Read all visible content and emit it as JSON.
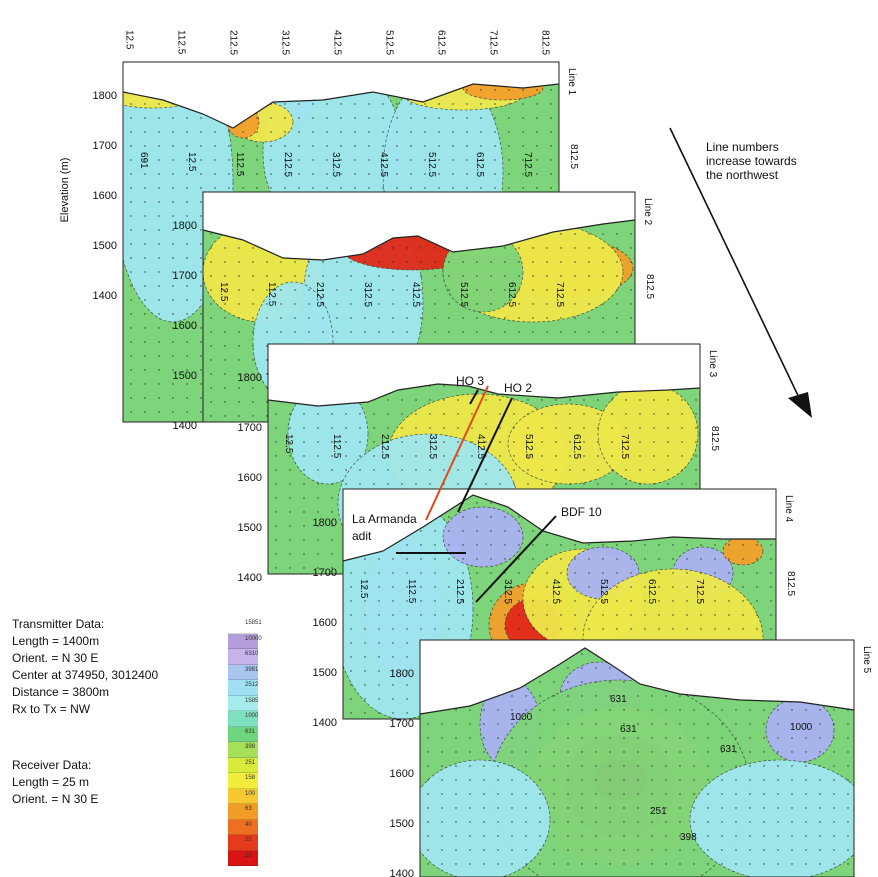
{
  "top_axis_ticks": [
    "12.5",
    "112.5",
    "212.5",
    "312.5",
    "412.5",
    "512.5",
    "612.5",
    "712.5",
    "812.5"
  ],
  "y_axis_label": "Elevation (m)",
  "sections": [
    {
      "name": "Line 1",
      "elev_ticks": [
        "1800",
        "1700",
        "1600",
        "1500",
        "1400"
      ],
      "station_labels": [
        "691",
        "12.5",
        "112.5",
        "212.5",
        "312.5",
        "412.5",
        "512.5",
        "612.5",
        "712.5"
      ],
      "side_label": "812.5"
    },
    {
      "name": "Line 2",
      "elev_ticks": [
        "1800",
        "1700",
        "1600",
        "1500",
        "1400"
      ],
      "station_labels": [
        "12.5",
        "112.5",
        "212.5",
        "312.5",
        "412.5",
        "512.5",
        "612.5",
        "712.5"
      ],
      "side_label": "812.5"
    },
    {
      "name": "Line 3",
      "elev_ticks": [
        "1800",
        "1700",
        "1600",
        "1500",
        "1400"
      ],
      "station_labels": [
        "12.5",
        "112.5",
        "212.5",
        "312.5",
        "412.5",
        "512.5",
        "612.5",
        "712.5"
      ],
      "side_label": "812.5"
    },
    {
      "name": "Line 4",
      "elev_ticks": [
        "1800",
        "1700",
        "1600",
        "1500",
        "1400"
      ],
      "station_labels": [
        "12.5",
        "112.5",
        "212.5",
        "312.5",
        "412.5",
        "512.5",
        "612.5",
        "712.5"
      ],
      "side_label": "812.5"
    },
    {
      "name": "Line 5",
      "elev_ticks": [
        "1800",
        "1700",
        "1600",
        "1500",
        "1400"
      ],
      "contour_labels": [
        "1000",
        "631",
        "631",
        "251",
        "398",
        "631",
        "1000"
      ]
    }
  ],
  "drillholes": {
    "ho3": "HO 3",
    "ho2": "HO 2",
    "bdf10": "BDF 10",
    "adit_1": "La Armanda",
    "adit_2": "adit"
  },
  "arrow_note": [
    "Line numbers",
    "increase towards",
    "the northwest"
  ],
  "transmitter": {
    "title": "Transmitter Data:",
    "lines": [
      "Length = 1400m",
      "Orient. = N 30 E",
      "Center at 374950, 3012400",
      "Distance = 3800m",
      "Rx to Tx = NW"
    ]
  },
  "receiver": {
    "title": "Receiver Data:",
    "lines": [
      "Length = 25 m",
      "Orient. = N 30 E"
    ]
  },
  "legend": {
    "values": [
      "15851",
      "10000",
      "6310",
      "3981",
      "2512",
      "1585",
      "1000",
      "631",
      "398",
      "251",
      "158",
      "100",
      "63",
      "40",
      "25",
      "16"
    ],
    "colors": [
      "#ffffff",
      "#b39ddb",
      "#c5b3ea",
      "#a9c6f0",
      "#9fe0f2",
      "#a6ecec",
      "#7fe0c0",
      "#6fd67f",
      "#a6e05a",
      "#d8ea3c",
      "#f2ec3a",
      "#f7c832",
      "#f29c28",
      "#ee6e22",
      "#e43b1c",
      "#d81414"
    ]
  },
  "palette": {
    "deep_blue": "#a9b3f2",
    "cyan": "#9fe6ef",
    "green": "#7ed47a",
    "yellow": "#eee84a",
    "orange": "#f2a02c",
    "red": "#e12a1a"
  }
}
